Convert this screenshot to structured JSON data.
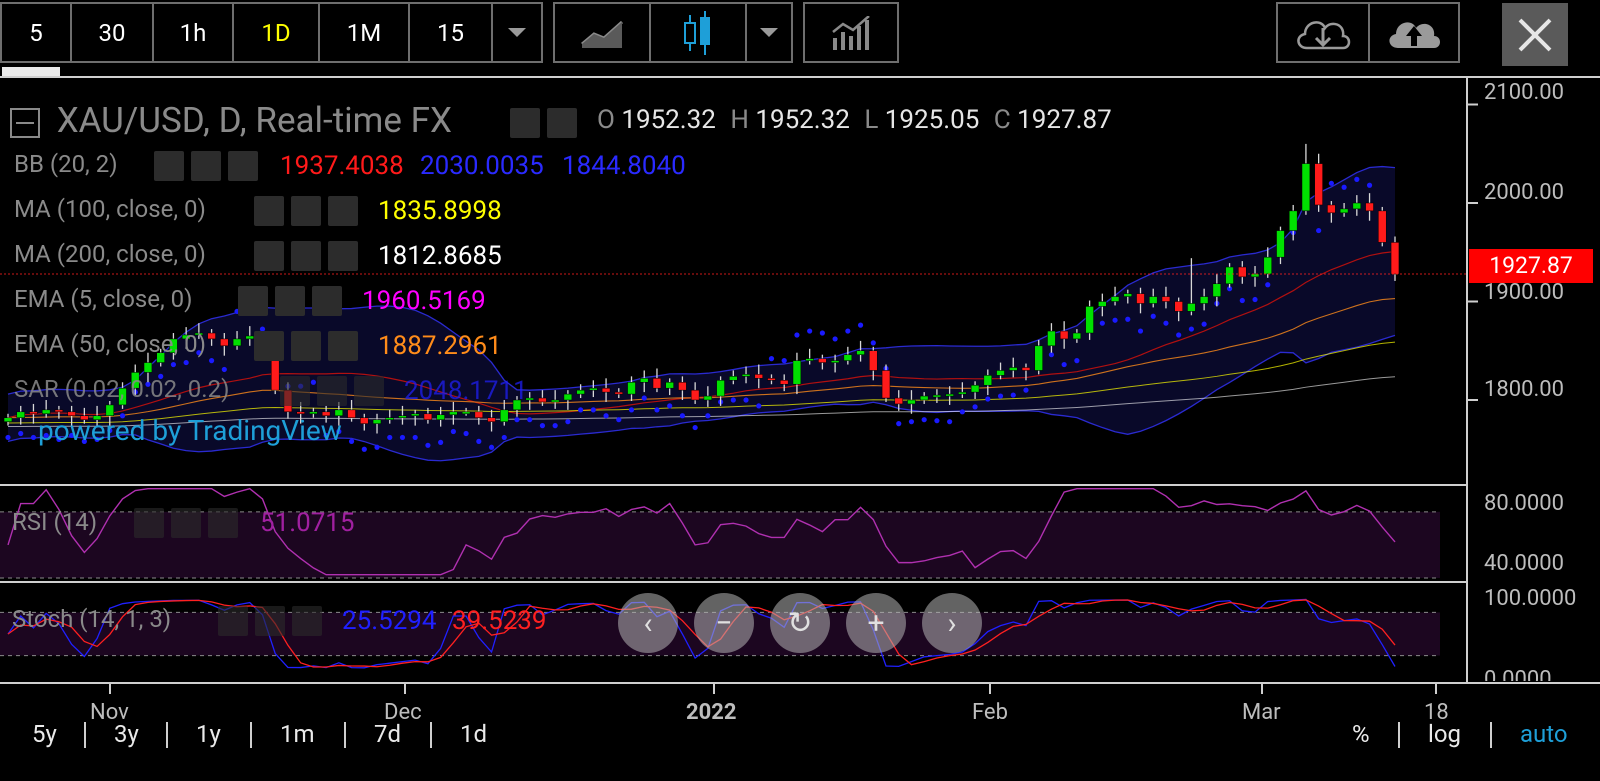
{
  "toolbar": {
    "intervals": [
      "5",
      "30",
      "1h",
      "1D",
      "1M",
      "15"
    ],
    "active_interval": "1D"
  },
  "header": {
    "symbol": "XAU/USD, D, Real-time FX",
    "o_label": "O",
    "o": "1952.32",
    "h_label": "H",
    "h": "1952.32",
    "l_label": "L",
    "l": "1925.05",
    "c_label": "C",
    "c": "1927.87"
  },
  "indicators": {
    "bb": {
      "label": "BB (20, 2)",
      "v1": "1937.4038",
      "v2": "2030.0035",
      "v3": "1844.8040"
    },
    "ma100": {
      "label": "MA (100, close, 0)",
      "v": "1835.8998"
    },
    "ma200": {
      "label": "MA (200, close, 0)",
      "v": "1812.8685"
    },
    "ema5": {
      "label": "EMA (5, close, 0)",
      "v": "1960.5169"
    },
    "ema50": {
      "label": "EMA (50, close, 0)",
      "v": "1887.2961"
    },
    "sar": {
      "label": "SAR (0.02, 0.02, 0.2)",
      "v": "2048.1711"
    }
  },
  "watermark": "powered by TradingView",
  "price_axis": {
    "ticks": [
      "2100.00",
      "2000.00",
      "1900.00",
      "1800.00"
    ],
    "last": "1927.87"
  },
  "rsi": {
    "label": "RSI (14)",
    "value": "51.0715",
    "axis": [
      "80.0000",
      "40.0000"
    ]
  },
  "stoch": {
    "label": "Stoch (14, 1, 3)",
    "k": "25.5294",
    "d": "39.5239",
    "axis": [
      "100.0000",
      "0.0000"
    ]
  },
  "time_axis": {
    "labels": [
      "Nov",
      "Dec",
      "2022",
      "Feb",
      "Mar",
      "18"
    ]
  },
  "ranges": [
    "5y",
    "3y",
    "1y",
    "1m",
    "7d",
    "1d"
  ],
  "scale_options": {
    "percent": "%",
    "log": "log",
    "auto": "auto"
  },
  "colors": {
    "up": "#00e000",
    "down": "#ff1a1a",
    "bb": "#2a2ad0",
    "sar": "#1a1aff",
    "ema5": "#ff00ff",
    "ema50": "#ff8c1a",
    "ma100": "#ffff00",
    "ma200": "#ffffff",
    "rsi": "#b030b0",
    "stoch_k": "#2020ff",
    "stoch_d": "#ff2020",
    "tv_link": "#1e9fd8"
  },
  "chart_data": {
    "type": "candlestick",
    "title": "XAU/USD, D, Real-time FX",
    "ylim": [
      1750,
      2110
    ],
    "x_labels": [
      "Nov",
      "Dec",
      "2022",
      "Feb",
      "Mar",
      "18"
    ],
    "closes": [
      1782,
      1788,
      1786,
      1790,
      1788,
      1784,
      1780,
      1784,
      1795,
      1812,
      1828,
      1838,
      1848,
      1862,
      1866,
      1868,
      1862,
      1855,
      1862,
      1865,
      1850,
      1810,
      1788,
      1786,
      1788,
      1784,
      1790,
      1782,
      1776,
      1780,
      1782,
      1784,
      1786,
      1780,
      1785,
      1788,
      1788,
      1782,
      1778,
      1790,
      1800,
      1802,
      1798,
      1800,
      1806,
      1810,
      1812,
      1808,
      1806,
      1818,
      1822,
      1812,
      1818,
      1810,
      1800,
      1804,
      1820,
      1824,
      1826,
      1822,
      1820,
      1816,
      1840,
      1842,
      1838,
      1840,
      1846,
      1850,
      1830,
      1802,
      1796,
      1800,
      1804,
      1805,
      1806,
      1808,
      1815,
      1825,
      1830,
      1833,
      1830,
      1855,
      1870,
      1862,
      1868,
      1895,
      1900,
      1905,
      1908,
      1898,
      1905,
      1900,
      1890,
      1898,
      1905,
      1918,
      1935,
      1925,
      1928,
      1945,
      1972,
      1992,
      2040,
      1998,
      1990,
      1994,
      2000,
      1992,
      1960,
      1927.87
    ],
    "last_price": 1927.87,
    "rsi_range": [
      30,
      85
    ],
    "stoch_range": [
      0,
      100
    ]
  }
}
